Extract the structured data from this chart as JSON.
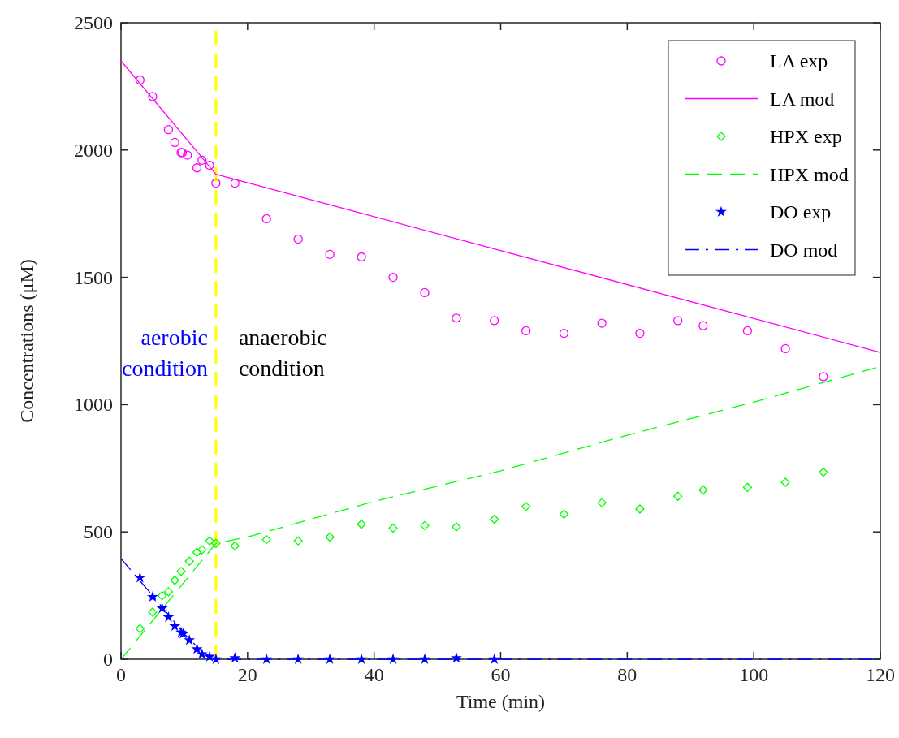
{
  "chart_data": {
    "type": "scatter",
    "xlabel": "Time (min)",
    "ylabel": "Concentrations (μM)",
    "xlim": [
      0,
      120
    ],
    "xticks": [
      0,
      20,
      40,
      60,
      80,
      100,
      120
    ],
    "ylim": [
      0,
      2500
    ],
    "yticks": [
      0,
      500,
      1000,
      1500,
      2000,
      2500
    ],
    "grid": false,
    "legend": "top right",
    "series": [
      {
        "name": "LA exp",
        "marker": "circle",
        "color": "#ff00ff",
        "x": [
          3,
          5,
          7.5,
          8.5,
          9.5,
          9.7,
          10.5,
          12,
          12.8,
          14,
          15,
          18,
          23,
          28,
          33,
          38,
          43,
          48,
          53,
          59,
          64,
          70,
          76,
          82,
          88,
          92,
          99,
          105,
          111
        ],
        "values": [
          2275,
          2210,
          2080,
          2030,
          1990,
          1990,
          1980,
          1930,
          1960,
          1940,
          1870,
          1870,
          1730,
          1650,
          1590,
          1580,
          1500,
          1440,
          1340,
          1330,
          1290,
          1280,
          1320,
          1280,
          1330,
          1310,
          1290,
          1220,
          1110
        ]
      },
      {
        "name": "LA mod",
        "type": "line",
        "marker": "none",
        "line_style": "solid",
        "color": "#ff00ff",
        "x": [
          0,
          15,
          120
        ],
        "values": [
          2350,
          1905,
          1205
        ]
      },
      {
        "name": "HPX exp",
        "marker": "diamond",
        "color": "#00ff00",
        "x": [
          3,
          5,
          6.5,
          7.5,
          8.5,
          9.5,
          10.8,
          12,
          12.8,
          14,
          15,
          18,
          23,
          28,
          33,
          38,
          43,
          48,
          53,
          59,
          64,
          70,
          76,
          82,
          88,
          92,
          99,
          105,
          111
        ],
        "values": [
          120,
          185,
          250,
          265,
          310,
          345,
          385,
          420,
          430,
          465,
          455,
          445,
          470,
          465,
          480,
          530,
          515,
          525,
          520,
          550,
          600,
          570,
          615,
          590,
          640,
          665,
          675,
          695,
          735
        ]
      },
      {
        "name": "HPX mod",
        "type": "line",
        "marker": "none",
        "line_style": "dashed",
        "color": "#00ff00",
        "x": [
          0,
          15,
          20,
          40,
          60,
          80,
          100,
          120
        ],
        "values": [
          0,
          455,
          480,
          620,
          740,
          880,
          1010,
          1150
        ]
      },
      {
        "name": "DO exp",
        "marker": "star",
        "color": "#0000ff",
        "x": [
          3,
          5,
          6.5,
          7.5,
          8.5,
          9.5,
          9.8,
          10.8,
          12,
          12.8,
          14,
          15,
          18,
          23,
          28,
          33,
          38,
          43,
          48,
          53,
          59
        ],
        "values": [
          320,
          245,
          200,
          165,
          130,
          105,
          100,
          75,
          40,
          20,
          10,
          0,
          5,
          0,
          0,
          0,
          0,
          0,
          0,
          5,
          0
        ]
      },
      {
        "name": "DO mod",
        "type": "line",
        "marker": "none",
        "line_style": "dashdot",
        "color": "#0000ff",
        "x": [
          0,
          5,
          10,
          13,
          15,
          120
        ],
        "values": [
          395,
          250,
          100,
          25,
          0,
          0
        ]
      }
    ],
    "ref_lines": [
      {
        "axis": "x",
        "value": 15,
        "color": "#ffff00",
        "line_style": "dashed"
      }
    ],
    "annotations": [
      "aerobic condition",
      "anaerobic condition"
    ]
  }
}
